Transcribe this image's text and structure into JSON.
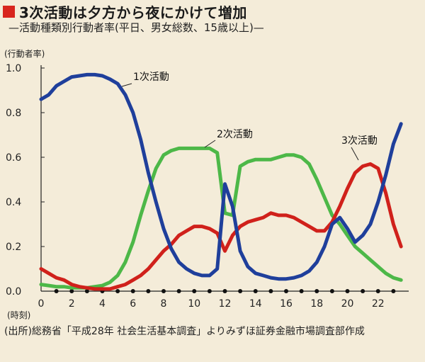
{
  "header": {
    "title": "3次活動は夕方から夜にかけて増加",
    "subtitle": "—活動種類別行動者率(平日、男女総数、15歳以上)—"
  },
  "source_note": "(出所)総務省「平成28年 社会生活基本調査」よりみずほ証券金融市場調査部作成",
  "colors": {
    "series1": "#1f3f9b",
    "series2": "#4db848",
    "series3": "#d0211b",
    "accent": "#d8251d",
    "background": "#f4ecd9"
  },
  "chart_data": {
    "type": "line",
    "title": "3次活動は夕方から夜にかけて増加",
    "ylabel": "(行動者率)",
    "xlabel": "(時刻)",
    "ylim": [
      0,
      1.0
    ],
    "xlim": [
      0,
      24
    ],
    "y_ticks": [
      "0.0",
      "0.2",
      "0.4",
      "0.6",
      "0.8",
      "1.0"
    ],
    "x_ticks": [
      "0",
      "2",
      "4",
      "6",
      "8",
      "10",
      "12",
      "14",
      "16",
      "18",
      "20",
      "22"
    ],
    "grid": false,
    "x": [
      0,
      0.5,
      1,
      1.5,
      2,
      2.5,
      3,
      3.5,
      4,
      4.5,
      5,
      5.5,
      6,
      6.5,
      7,
      7.5,
      8,
      8.5,
      9,
      9.5,
      10,
      10.5,
      11,
      11.5,
      12,
      12.5,
      13,
      13.5,
      14,
      14.5,
      15,
      15.5,
      16,
      16.5,
      17,
      17.5,
      18,
      18.5,
      19,
      19.5,
      20,
      20.5,
      21,
      21.5,
      22,
      22.5,
      23,
      23.5
    ],
    "series": [
      {
        "name": "1次活動",
        "values": [
          0.86,
          0.88,
          0.92,
          0.94,
          0.96,
          0.965,
          0.97,
          0.97,
          0.965,
          0.95,
          0.93,
          0.88,
          0.8,
          0.68,
          0.53,
          0.4,
          0.28,
          0.19,
          0.13,
          0.1,
          0.08,
          0.07,
          0.07,
          0.1,
          0.48,
          0.38,
          0.18,
          0.11,
          0.08,
          0.07,
          0.06,
          0.055,
          0.055,
          0.06,
          0.07,
          0.09,
          0.13,
          0.2,
          0.3,
          0.33,
          0.28,
          0.22,
          0.25,
          0.3,
          0.4,
          0.52,
          0.66,
          0.75
        ]
      },
      {
        "name": "2次活動",
        "values": [
          0.03,
          0.025,
          0.02,
          0.02,
          0.015,
          0.015,
          0.015,
          0.02,
          0.025,
          0.04,
          0.07,
          0.13,
          0.22,
          0.34,
          0.45,
          0.55,
          0.61,
          0.63,
          0.64,
          0.64,
          0.64,
          0.64,
          0.64,
          0.62,
          0.35,
          0.34,
          0.56,
          0.58,
          0.59,
          0.59,
          0.59,
          0.6,
          0.61,
          0.61,
          0.6,
          0.57,
          0.5,
          0.42,
          0.34,
          0.3,
          0.25,
          0.2,
          0.17,
          0.14,
          0.11,
          0.08,
          0.06,
          0.05
        ]
      },
      {
        "name": "3次活動",
        "values": [
          0.1,
          0.08,
          0.06,
          0.05,
          0.03,
          0.02,
          0.015,
          0.01,
          0.01,
          0.01,
          0.02,
          0.03,
          0.05,
          0.07,
          0.1,
          0.14,
          0.18,
          0.21,
          0.25,
          0.27,
          0.29,
          0.29,
          0.28,
          0.26,
          0.18,
          0.25,
          0.29,
          0.31,
          0.32,
          0.33,
          0.35,
          0.34,
          0.34,
          0.33,
          0.31,
          0.29,
          0.27,
          0.27,
          0.31,
          0.38,
          0.46,
          0.53,
          0.56,
          0.57,
          0.55,
          0.44,
          0.3,
          0.2
        ]
      }
    ]
  }
}
